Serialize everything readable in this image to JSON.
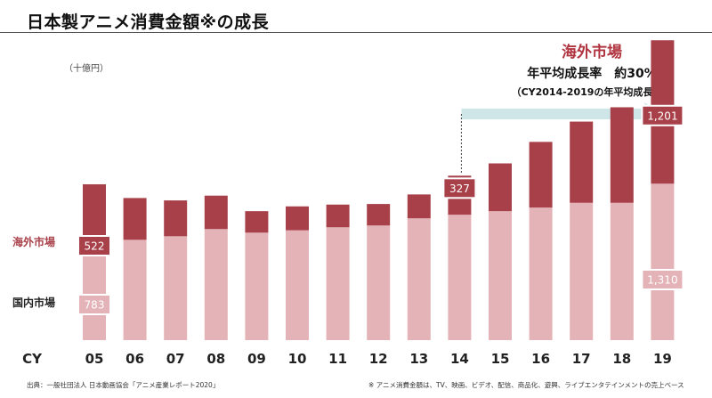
{
  "title": "日本製アニメ消費金額※の成長",
  "unit": "（十億円）",
  "annotation": {
    "heading": "海外市場",
    "line1": "年平均成長率　約30%",
    "line2": "（CY2014-2019の年平均成長率）"
  },
  "footnote_left": "出典：一般社団法人 日本動画協会「アニメ産業レポート2020」",
  "footnote_right": "※ アニメ消費金額は、TV、映画、ビデオ、配信、商品化、遊興、ライブエンタテインメントの売上ベース",
  "colors": {
    "overseas": "#a8404a",
    "domestic": "#e3b3b7",
    "arrow": "#cfe6e8"
  },
  "chart_data": {
    "type": "bar",
    "stacked": true,
    "x_axis_label": "CY",
    "categories": [
      "05",
      "06",
      "07",
      "08",
      "09",
      "10",
      "11",
      "12",
      "13",
      "14",
      "15",
      "16",
      "17",
      "18",
      "19"
    ],
    "series": [
      {
        "name": "国内市場",
        "values": [
          783,
          840,
          870,
          930,
          900,
          920,
          945,
          960,
          1020,
          1050,
          1080,
          1110,
          1150,
          1150,
          1310
        ]
      },
      {
        "name": "海外市場",
        "values": [
          522,
          350,
          300,
          280,
          180,
          200,
          190,
          180,
          200,
          327,
          400,
          550,
          680,
          800,
          1201
        ]
      }
    ],
    "data_labels": [
      {
        "category": "05",
        "series": "海外市場",
        "text": "522"
      },
      {
        "category": "05",
        "series": "国内市場",
        "text": "783"
      },
      {
        "category": "14",
        "series": "海外市場",
        "text": "327"
      },
      {
        "category": "19",
        "series": "海外市場",
        "text": "1,201"
      },
      {
        "category": "19",
        "series": "国内市場",
        "text": "1,310"
      }
    ],
    "ylim": [
      0,
      2550
    ],
    "grid": false,
    "legend": "left-side labels"
  }
}
